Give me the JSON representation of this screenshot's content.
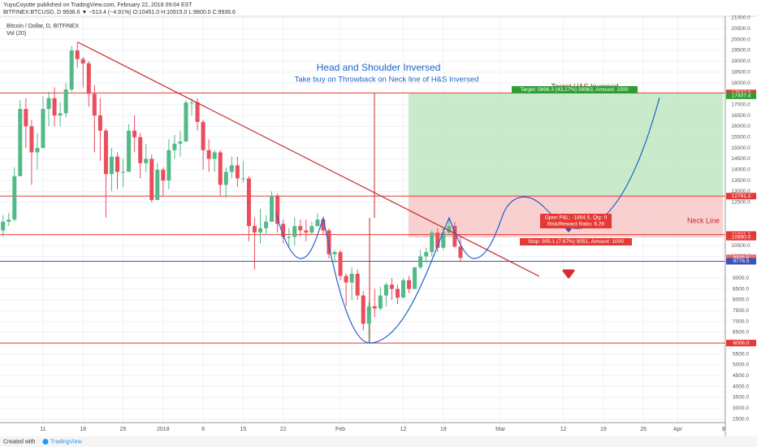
{
  "header": {
    "publisher": "YuyuCoyotte published on TradingView.com, February 22, 2018 09:04 EST",
    "symbol_line": "BITFINEX:BTCUSD, D 9936.6 ▼ −513.4 (−4.91%) O:10451.0 H:10915.0 L:9800.0 C:9936.6"
  },
  "footer": {
    "created_with": "Created with",
    "brand": "TradingView"
  },
  "chart_data": {
    "type": "candlestick",
    "title": "Head and Shoulder Inversed",
    "subtitle": "Take buy on Throwback on Neck line of H&S Inversed",
    "legend_symbol": "Bitcoin / Dollar, D, BITFINEX",
    "legend_volume": "Vol (20)",
    "up_color": "#53b987",
    "down_color": "#eb4d5c",
    "grid": true,
    "categories": [
      null,
      null,
      null,
      null,
      null,
      null,
      null,
      "11",
      null,
      null,
      null,
      null,
      null,
      null,
      "18",
      null,
      null,
      null,
      null,
      null,
      null,
      "25",
      null,
      null,
      null,
      null,
      null,
      null,
      "2018",
      null,
      null,
      null,
      null,
      null,
      null,
      "8",
      null,
      null,
      null,
      null,
      null,
      null,
      "15",
      null,
      null,
      null,
      null,
      null,
      null,
      "22",
      null,
      null,
      null,
      null,
      null,
      null,
      null,
      null,
      null,
      "Feb",
      null,
      null,
      null,
      null,
      null,
      null,
      null,
      null,
      null,
      null,
      "12",
      null,
      null,
      null,
      null,
      null,
      null,
      "19",
      null,
      null,
      null,
      null,
      null,
      null,
      null,
      null,
      null,
      "Mar",
      null,
      null,
      null,
      null,
      null,
      null,
      null,
      null,
      null,
      null,
      "12",
      null,
      null,
      null,
      null,
      null,
      null,
      "19",
      null,
      null,
      null,
      null,
      null,
      null,
      "26",
      null,
      null,
      null,
      null,
      null,
      "Apr",
      null,
      null,
      null,
      null,
      null,
      null,
      null,
      "9"
    ],
    "open": [
      11200,
      11600,
      11700,
      13700,
      16800,
      16000,
      14800,
      15000,
      16800,
      17300,
      16500,
      16600,
      17700,
      19500,
      19100,
      18900,
      17500,
      16500,
      15800,
      13800,
      14600,
      13900,
      13900,
      15800,
      15500,
      14300,
      14500,
      12600,
      14000,
      13500,
      14900,
      15200,
      15300,
      17100,
      17100,
      16200,
      14900,
      14500,
      14800,
      13300,
      13900,
      14200,
      13600,
      13600,
      11400,
      11100,
      11300,
      11600,
      12800,
      11500,
      10900,
      10900,
      11400,
      11200,
      11100,
      11400,
      11700,
      11200,
      10100,
      10200,
      9100,
      8800,
      9200,
      8200,
      6900,
      7700,
      7600,
      8200,
      8700,
      8500,
      8100,
      8900,
      8500,
      9500,
      10000,
      10200,
      11100,
      10400,
      11100,
      11400,
      10451.0,
      null,
      null,
      null,
      null,
      null,
      null,
      null,
      null,
      null,
      null,
      null,
      null,
      null,
      null,
      null,
      null,
      null,
      null,
      null,
      null,
      null,
      null,
      null,
      null,
      null,
      null,
      null,
      null,
      null,
      null,
      null,
      null,
      null,
      null,
      null,
      null,
      null,
      null,
      null,
      null,
      null,
      null,
      null,
      null,
      null,
      null
    ],
    "high": [
      11900,
      12000,
      14100,
      17200,
      17300,
      16300,
      15700,
      17400,
      17600,
      17800,
      17100,
      18000,
      19700,
      19900,
      19200,
      19000,
      17900,
      17300,
      15900,
      15000,
      14800,
      14500,
      16100,
      16500,
      15700,
      15200,
      14700,
      14300,
      14100,
      15400,
      15600,
      15800,
      17200,
      17300,
      17300,
      16300,
      15400,
      14900,
      14900,
      14100,
      14600,
      14600,
      14400,
      13700,
      11800,
      12200,
      11900,
      13000,
      12900,
      11700,
      11300,
      11800,
      11700,
      11700,
      11600,
      12000,
      11800,
      11300,
      10300,
      10300,
      9200,
      9500,
      9400,
      8400,
      7900,
      8500,
      8600,
      8800,
      9000,
      8700,
      9000,
      9100,
      9500,
      10300,
      10400,
      11200,
      11300,
      11300,
      11800,
      11600,
      10915.0,
      null,
      null,
      null,
      null,
      null,
      null,
      null,
      null,
      null,
      null,
      null,
      null,
      null,
      null,
      null,
      null,
      null,
      null,
      null,
      null,
      null,
      null,
      null,
      null,
      null,
      null,
      null,
      null,
      null,
      null,
      null,
      null,
      null,
      null,
      null,
      null,
      null,
      null,
      null,
      null,
      null,
      null,
      null,
      null,
      null,
      null
    ],
    "low": [
      10900,
      11400,
      11600,
      13700,
      15000,
      13300,
      14000,
      15000,
      16000,
      16000,
      16000,
      16400,
      17600,
      18700,
      17800,
      16900,
      14800,
      14400,
      11800,
      13000,
      13100,
      13200,
      13900,
      14800,
      13600,
      13900,
      12500,
      12700,
      12800,
      13100,
      14500,
      14600,
      15300,
      16500,
      15800,
      14000,
      13900,
      13900,
      12800,
      12700,
      13600,
      13200,
      13400,
      10700,
      9400,
      10600,
      11000,
      11600,
      11100,
      10600,
      10400,
      10500,
      10900,
      10700,
      11000,
      11400,
      11000,
      9900,
      9700,
      8900,
      7700,
      8000,
      8000,
      6600,
      6000,
      7200,
      7500,
      7700,
      8000,
      7800,
      8100,
      8300,
      8500,
      9400,
      9700,
      10000,
      10200,
      10300,
      11000,
      10400,
      9800.0,
      null,
      null,
      null,
      null,
      null,
      null,
      null,
      null,
      null,
      null,
      null,
      null,
      null,
      null,
      null,
      null,
      null,
      null,
      null,
      null,
      null,
      null,
      null,
      null,
      null,
      null,
      null,
      null,
      null,
      null,
      null,
      null,
      null,
      null,
      null,
      null,
      null,
      null,
      null,
      null,
      null,
      null,
      null,
      null,
      null,
      null
    ],
    "close": [
      11600,
      11700,
      13700,
      16800,
      16000,
      14800,
      15000,
      16800,
      17300,
      16500,
      16600,
      17700,
      19500,
      19100,
      18900,
      17500,
      16500,
      15800,
      13800,
      14600,
      13900,
      13900,
      15800,
      15500,
      14300,
      14500,
      12600,
      14000,
      13500,
      14900,
      15200,
      15300,
      17100,
      17100,
      16200,
      14900,
      14500,
      14800,
      13300,
      13900,
      14200,
      13600,
      13600,
      11400,
      11100,
      11300,
      11600,
      12800,
      11500,
      10900,
      10900,
      11400,
      11200,
      11100,
      11400,
      11700,
      11200,
      10100,
      10200,
      9100,
      8800,
      9200,
      8200,
      6900,
      7700,
      7600,
      8200,
      8700,
      8500,
      8100,
      8900,
      8500,
      9500,
      10000,
      10200,
      11100,
      10400,
      11100,
      11400,
      10451,
      9936.6,
      null,
      null,
      null,
      null,
      null,
      null,
      null,
      null,
      null,
      null,
      null,
      null,
      null,
      null,
      null,
      null,
      null,
      null,
      null,
      null,
      null,
      null,
      null,
      null,
      null,
      null,
      null,
      null,
      null,
      null,
      null,
      null,
      null,
      null,
      null,
      null,
      null,
      null,
      null,
      null,
      null,
      null,
      null,
      null,
      null,
      null
    ],
    "ylim": [
      1700,
      21075
    ],
    "yticks": [
      {
        "value": 21000,
        "label": "21000.0"
      },
      {
        "value": 20500,
        "label": "20500.0"
      },
      {
        "value": 20000,
        "label": "20000.0"
      },
      {
        "value": 19500,
        "label": "19500.0"
      },
      {
        "value": 19000,
        "label": "19000.0"
      },
      {
        "value": 18500,
        "label": "18500.0"
      },
      {
        "value": 18000,
        "label": "18000.0"
      },
      {
        "value": 17000,
        "label": "17000.0"
      },
      {
        "value": 16500,
        "label": "16500.0"
      },
      {
        "value": 16000,
        "label": "16000.0"
      },
      {
        "value": 15500,
        "label": "15500.0"
      },
      {
        "value": 15000,
        "label": "15000.0"
      },
      {
        "value": 14500,
        "label": "14500.0"
      },
      {
        "value": 14000,
        "label": "14000.0"
      },
      {
        "value": 13500,
        "label": "13500.0"
      },
      {
        "value": 13000,
        "label": "13000.0"
      },
      {
        "value": 12500,
        "label": "12500.0"
      },
      {
        "value": 10500,
        "label": "10500.0"
      },
      {
        "value": 10000,
        "label": "10000.0"
      },
      {
        "value": 9000,
        "label": "9000.0"
      },
      {
        "value": 8500,
        "label": "8500.0"
      },
      {
        "value": 8000,
        "label": "8000.0"
      },
      {
        "value": 7500,
        "label": "7500.0"
      },
      {
        "value": 7000,
        "label": "7000.0"
      },
      {
        "value": 6500,
        "label": "6500.0"
      },
      {
        "value": 5500,
        "label": "5500.0"
      },
      {
        "value": 5000,
        "label": "5000.0"
      },
      {
        "value": 4500,
        "label": "4500.0"
      },
      {
        "value": 4000,
        "label": "4000.0"
      },
      {
        "value": 3500,
        "label": "3500.0"
      },
      {
        "value": 3000,
        "label": "3000.0"
      },
      {
        "value": 2500,
        "label": "2500.0"
      }
    ],
    "price_labels": [
      {
        "value": 17537.9,
        "label": "17537.9",
        "color": "#e53935",
        "line": true
      },
      {
        "value": 17407.4,
        "label": "17407.4",
        "color": "#2e9e32",
        "line": false
      },
      {
        "value": 12781.2,
        "label": "12781.2",
        "color": "#e53935",
        "line": true
      },
      {
        "value": 11009.4,
        "label": "11009.4",
        "color": "#e53935",
        "line": true
      },
      {
        "value": 11001.1,
        "label": "11001.1",
        "color": "#e53935",
        "line": false
      },
      {
        "value": 10890.0,
        "label": "10890.0",
        "color": "#e53935",
        "line": false
      },
      {
        "value": 9936.6,
        "label": "9936.6",
        "color": "#ef6c6c",
        "line": false
      },
      {
        "value": 9776.5,
        "label": "9776.5",
        "color": "#3f51b5",
        "line": true
      },
      {
        "value": 6006.0,
        "label": "6006.0",
        "color": "#e53935",
        "line": true
      }
    ],
    "annotations": {
      "target": "Target: 5696.3 (43.27%) 56963, Amount: 1000",
      "target_name": "Target H&S Inversed",
      "open_pnl": "Open P&L: -1864.5, Qty: 0",
      "risk_reward": "Risk/Reward Ratio: 6.29",
      "stop": "Stop: 905.1 (7.67%) 9051, Amount: 1000",
      "neck_line": "Neck Line"
    }
  }
}
